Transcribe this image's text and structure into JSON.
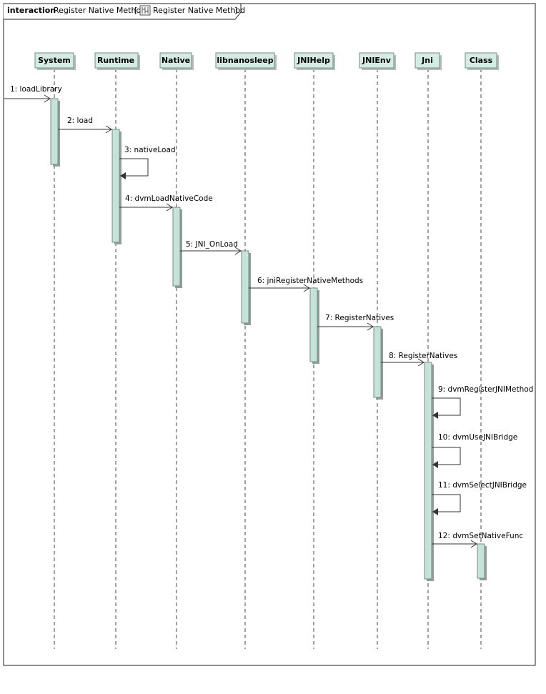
{
  "frame": {
    "keyword": "interaction",
    "name": "Register Native Method",
    "bracket_open": "[",
    "reference_icon": "interaction-reference-icon",
    "reference_name": "Register Native Method",
    "bracket_close": "]"
  },
  "lifelines": [
    {
      "id": "system",
      "name": "System"
    },
    {
      "id": "runtime",
      "name": "Runtime"
    },
    {
      "id": "native",
      "name": "Native"
    },
    {
      "id": "libnanosleep",
      "name": "libnanosleep"
    },
    {
      "id": "jnihelp",
      "name": "JNIHelp"
    },
    {
      "id": "jnienv",
      "name": "JNIEnv"
    },
    {
      "id": "jni",
      "name": "Jni"
    },
    {
      "id": "class",
      "name": "Class"
    }
  ],
  "messages": [
    {
      "label": "1: loadLibrary",
      "from": "",
      "to": "system"
    },
    {
      "label": "2: load",
      "from": "system",
      "to": "runtime"
    },
    {
      "label": "3: nativeLoad",
      "from": "runtime",
      "to": "runtime"
    },
    {
      "label": "4: dvmLoadNativeCode",
      "from": "runtime",
      "to": "native"
    },
    {
      "label": "5: JNI_OnLoad",
      "from": "native",
      "to": "libnanosleep"
    },
    {
      "label": "6: jniRegisterNativeMethods",
      "from": "libnanosleep",
      "to": "jnihelp"
    },
    {
      "label": "7: RegisterNatives",
      "from": "jnihelp",
      "to": "jnienv"
    },
    {
      "label": "8: RegisterNatives",
      "from": "jnienv",
      "to": "jni"
    },
    {
      "label": "9: dvmRegisterJNIMethod",
      "from": "jni",
      "to": "jni"
    },
    {
      "label": "10: dvmUseJNIBridge",
      "from": "jni",
      "to": "jni"
    },
    {
      "label": "11: dvmSelectJNIBridge",
      "from": "jni",
      "to": "jni"
    },
    {
      "label": "12: dvmSetNativeFunc",
      "from": "jni",
      "to": "class"
    }
  ],
  "colors": {
    "lifeline_head_fill": "#d5ece4",
    "activation_fill": "#c5e3d6",
    "border": "#6f8f85",
    "line": "#333333"
  }
}
